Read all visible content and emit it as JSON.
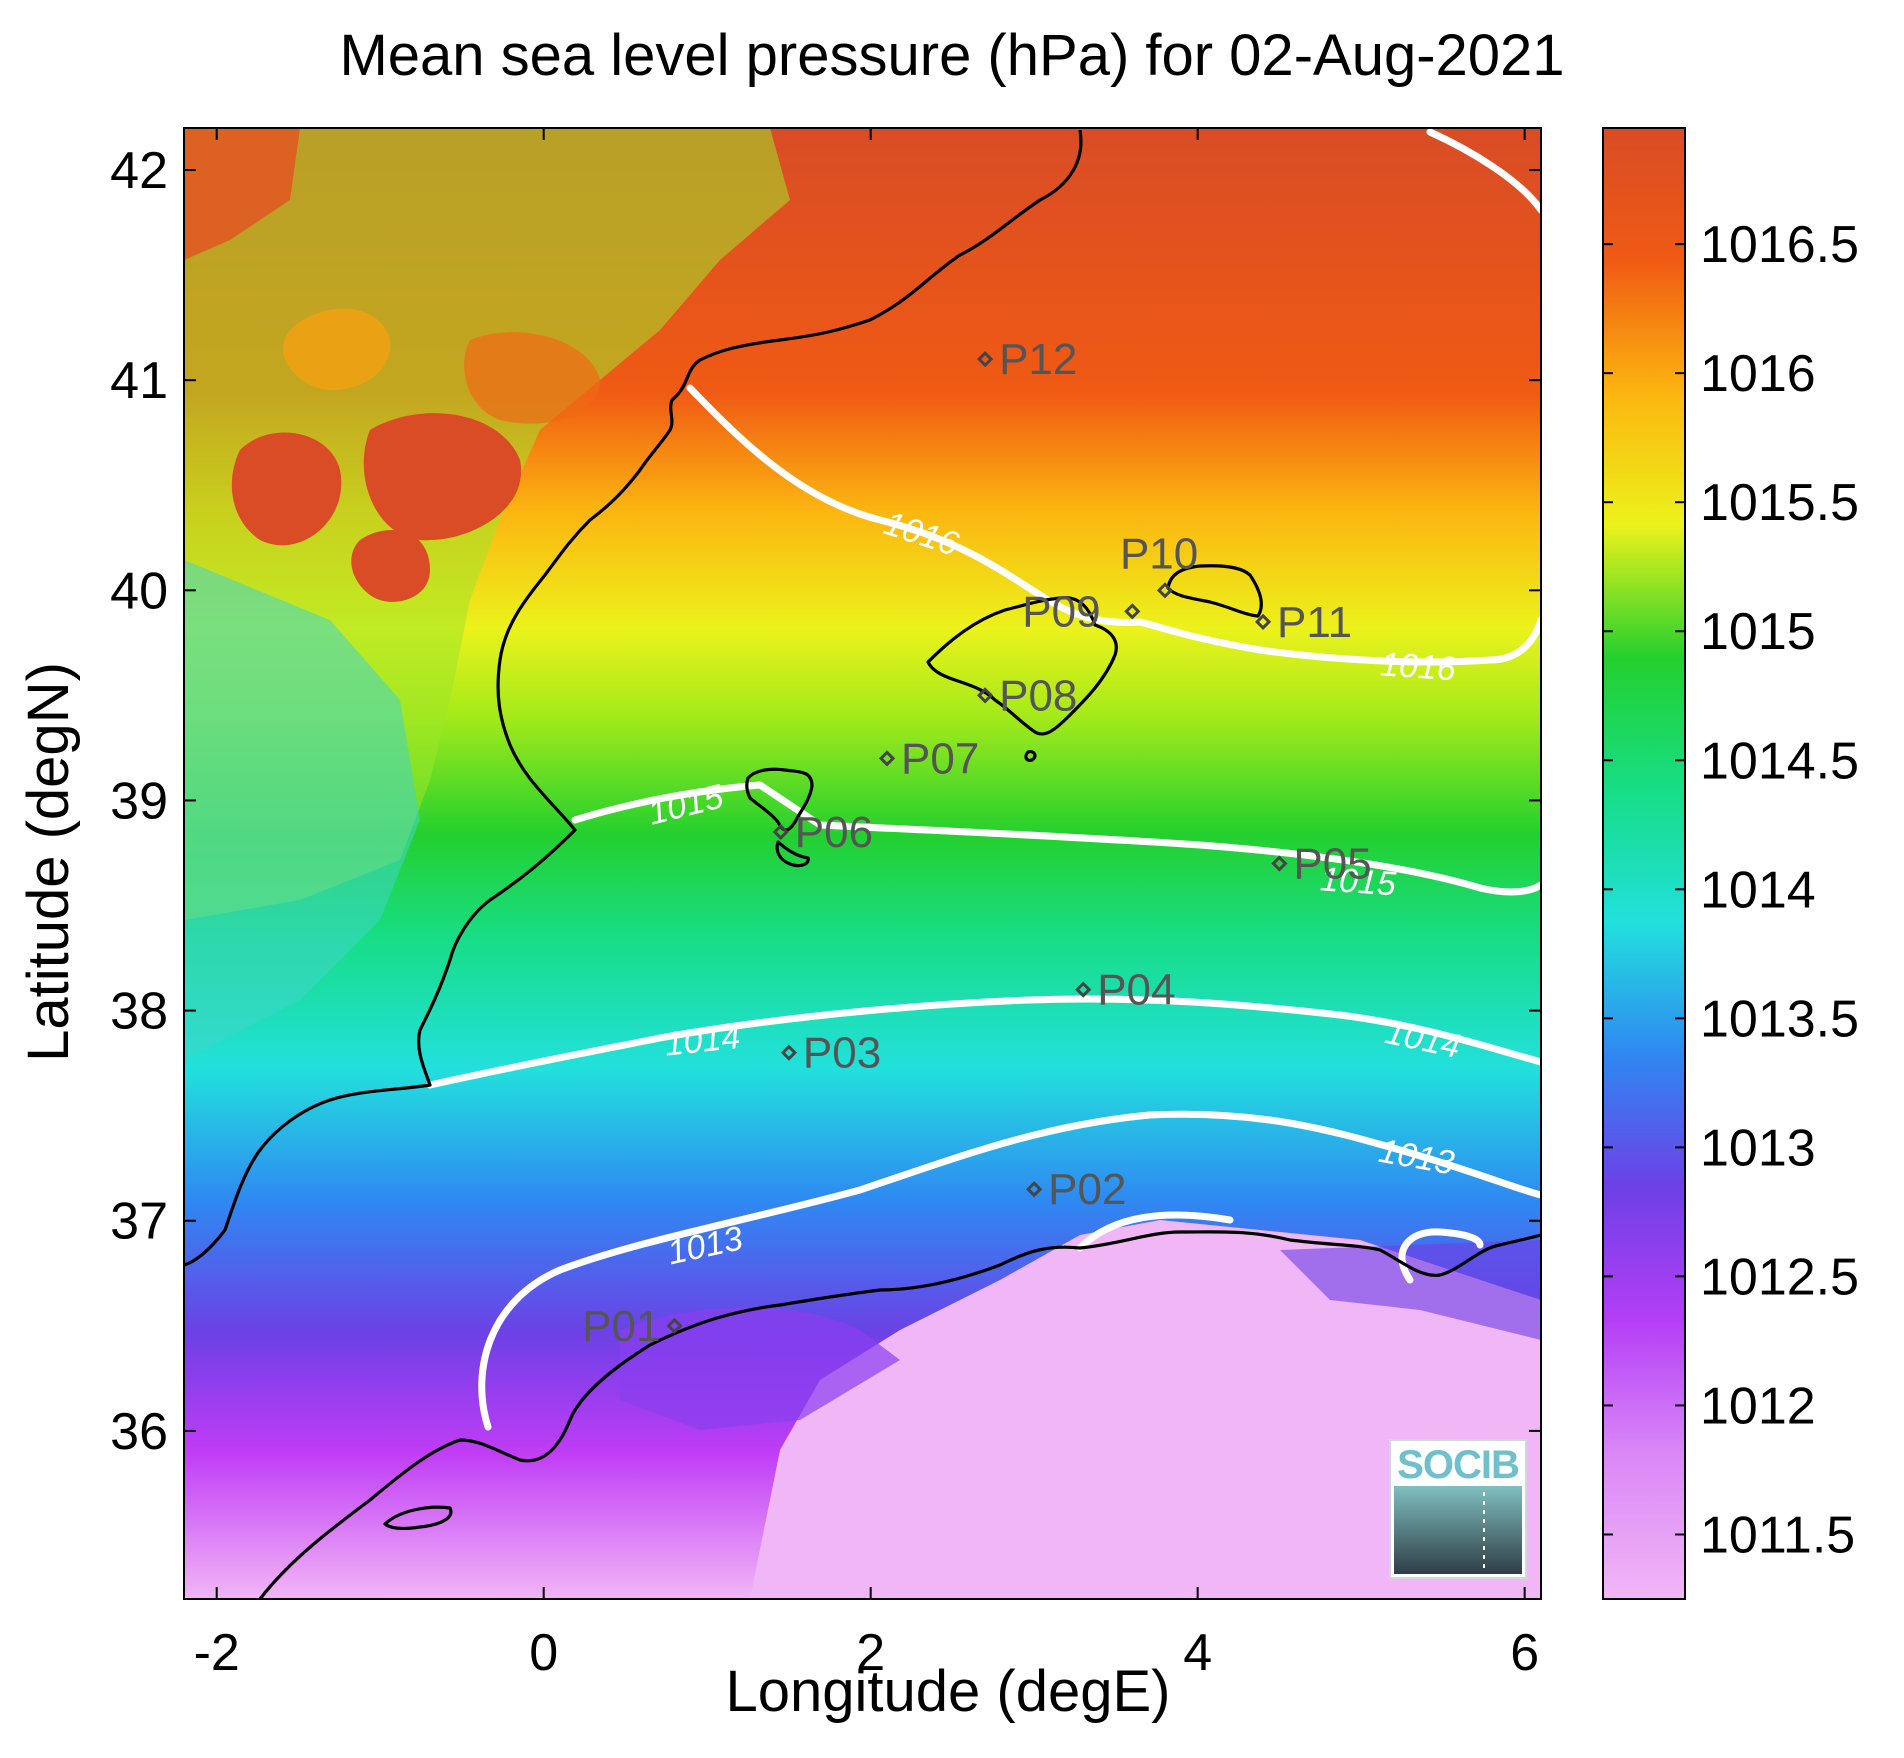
{
  "title": "Mean sea level pressure (hPa) for 02-Aug-2021",
  "x_axis": {
    "label": "Longitude (degE)",
    "ticks": [
      "-2",
      "0",
      "2",
      "4",
      "6"
    ],
    "range": [
      -2.2,
      6.1
    ]
  },
  "y_axis": {
    "label": "Latitude (degN)",
    "ticks": [
      "36",
      "37",
      "38",
      "39",
      "40",
      "41",
      "42"
    ],
    "range": [
      35.2,
      42.2
    ]
  },
  "colorbar": {
    "ticks": [
      "1011.5",
      "1012",
      "1012.5",
      "1013",
      "1013.5",
      "1014",
      "1014.5",
      "1015",
      "1015.5",
      "1016",
      "1016.5"
    ],
    "range": [
      1011.25,
      1016.95
    ],
    "colormap": [
      "#f1b6f6",
      "#c03cf6",
      "#6d40e6",
      "#2f88f2",
      "#22e0dd",
      "#17dd86",
      "#24d02e",
      "#a4ea1a",
      "#ecf21b",
      "#fcb510",
      "#f05a14",
      "#d94c25"
    ]
  },
  "contour_labels": [
    "1016",
    "1016",
    "1015",
    "1015",
    "1014",
    "1014",
    "1013",
    "1013"
  ],
  "points": [
    {
      "id": "P01",
      "lon": 0.8,
      "lat": 36.5
    },
    {
      "id": "P02",
      "lon": 3.0,
      "lat": 37.15
    },
    {
      "id": "P03",
      "lon": 1.5,
      "lat": 37.8
    },
    {
      "id": "P04",
      "lon": 3.3,
      "lat": 38.1
    },
    {
      "id": "P05",
      "lon": 4.5,
      "lat": 38.7
    },
    {
      "id": "P06",
      "lon": 1.45,
      "lat": 38.85
    },
    {
      "id": "P07",
      "lon": 2.1,
      "lat": 39.2
    },
    {
      "id": "P08",
      "lon": 2.7,
      "lat": 39.5
    },
    {
      "id": "P09",
      "lon": 3.6,
      "lat": 39.9
    },
    {
      "id": "P10",
      "lon": 3.8,
      "lat": 40.0
    },
    {
      "id": "P11",
      "lon": 4.4,
      "lat": 39.85
    },
    {
      "id": "P12",
      "lon": 2.7,
      "lat": 41.1
    }
  ],
  "logo": {
    "text": "SOCIB"
  },
  "chart_data": {
    "type": "heatmap",
    "title": "Mean sea level pressure (hPa) for 02-Aug-2021",
    "xlabel": "Longitude (degE)",
    "ylabel": "Latitude (degN)",
    "xlim": [
      -2.2,
      6.1
    ],
    "ylim": [
      35.2,
      42.2
    ],
    "value_range": [
      1011.25,
      1016.95
    ],
    "contour_levels": [
      1013,
      1014,
      1015,
      1016
    ],
    "grid": false
  },
  "colors": {
    "coast": "#000000",
    "contour": "#ffffff",
    "marker": "#444444"
  }
}
